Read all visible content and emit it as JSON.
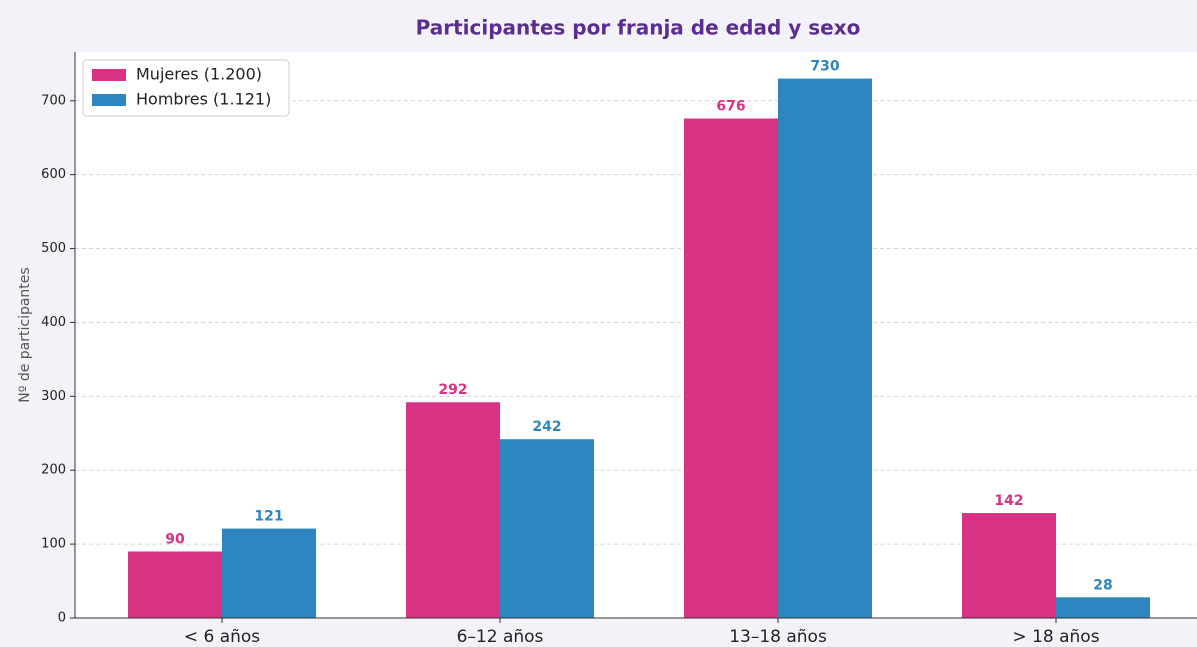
{
  "chart_data": {
    "type": "bar",
    "title": "Participantes por franja de edad y sexo",
    "y_label": "Nº de participantes",
    "categories": [
      "< 6 años",
      "6–12 años",
      "13–18 años",
      "> 18 años"
    ],
    "series": [
      {
        "name": "Mujeres (1.200)",
        "color": "#d63384",
        "values": [
          90,
          292,
          676,
          142
        ]
      },
      {
        "name": "Hombres (1.121)",
        "color": "#2e86c1",
        "values": [
          121,
          242,
          730,
          28
        ]
      }
    ],
    "ylim": [
      0,
      766
    ],
    "yticks": [
      0,
      100,
      200,
      300,
      400,
      500,
      600,
      700
    ],
    "grid": true,
    "legend": "upper left"
  }
}
